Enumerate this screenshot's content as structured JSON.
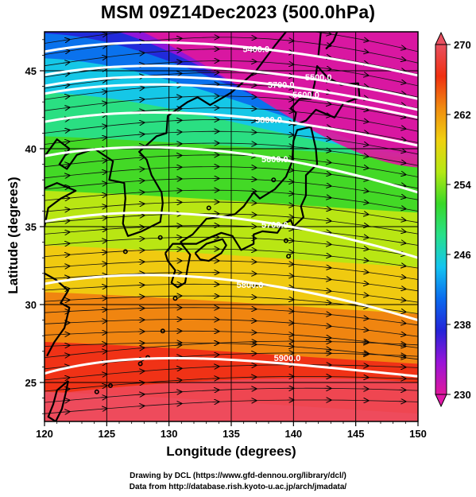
{
  "title": "MSM 09Z14Dec2023 (500.0hPa)",
  "xlabel": "Longitude (degrees)",
  "ylabel": "Latitude  (degrees)",
  "credits": [
    "Drawing by DCL (https://www.gfd-dennou.org/library/dcl/)",
    "Data from http://database.rish.kyoto-u.ac.jp/arch/jmadata/"
  ],
  "map": {
    "lon_range": [
      120,
      150
    ],
    "lat_range": [
      22.5,
      47.5
    ],
    "lon_ticks": [
      "120",
      "125",
      "130",
      "135",
      "140",
      "145",
      "150"
    ],
    "lat_ticks": [
      "25",
      "30",
      "35",
      "40",
      "45"
    ],
    "grid": true
  },
  "colorbar": {
    "min": 230,
    "max": 270,
    "tick_labels": [
      "270",
      "262",
      "254",
      "246",
      "238",
      "230"
    ],
    "palette": [
      "#e0189c",
      "#9a14d8",
      "#2424d8",
      "#0a6aee",
      "#14c4f0",
      "#28e08a",
      "#38d828",
      "#b4e814",
      "#f0d010",
      "#f08c10",
      "#f03010",
      "#e85060"
    ]
  },
  "contours": [
    {
      "label": "5400.0",
      "lat": 46.5
    },
    {
      "label": "5500.0",
      "lat": 45.0
    },
    {
      "label": "5600.0",
      "lat": 43.8
    },
    {
      "label": "5700.0",
      "lat": 44.3
    },
    {
      "label": "5800.0",
      "lat": 42.0
    },
    {
      "label": "5600.0",
      "lat": 39.8
    },
    {
      "label": "5700.0",
      "lat": 35.6
    },
    {
      "label": "5800.0",
      "lat": 31.6
    },
    {
      "label": "5900.0",
      "lat": 26.0
    }
  ]
}
